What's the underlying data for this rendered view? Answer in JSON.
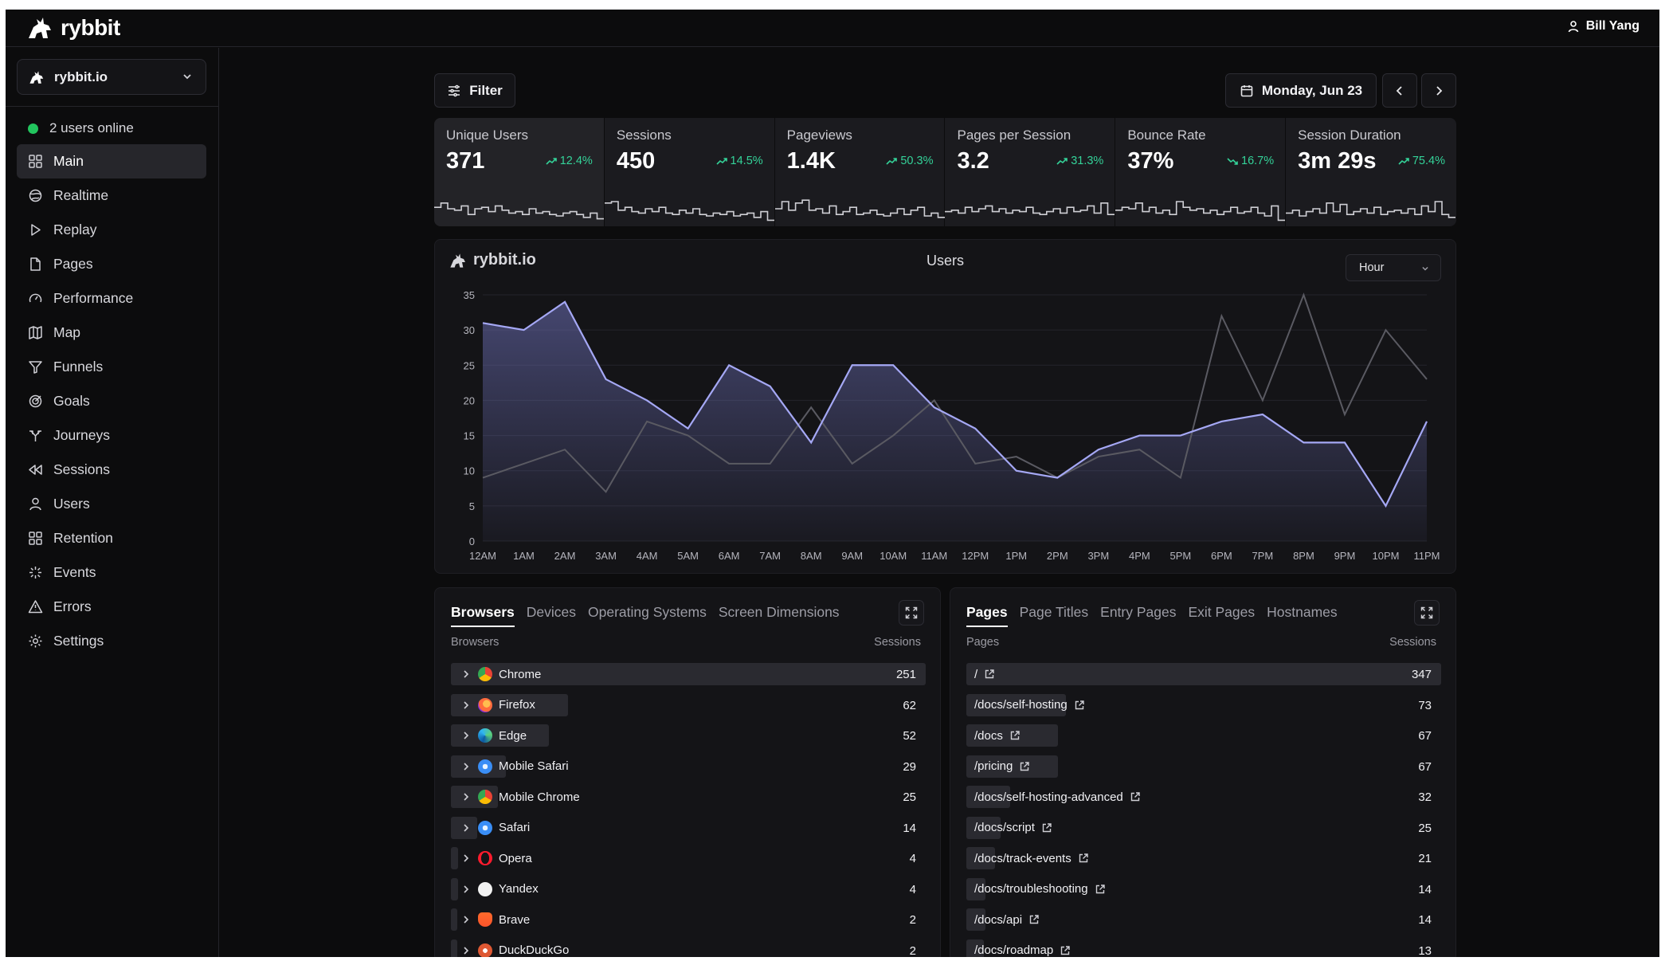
{
  "app": {
    "name": "rybbit",
    "user": "Bill Yang"
  },
  "sidebar": {
    "site": "rybbit.io",
    "online": "2 users online",
    "items": [
      {
        "label": "Main",
        "icon": "grid-icon",
        "active": true
      },
      {
        "label": "Realtime",
        "icon": "globe-icon"
      },
      {
        "label": "Replay",
        "icon": "play-icon"
      },
      {
        "label": "Pages",
        "icon": "file-icon"
      },
      {
        "label": "Performance",
        "icon": "gauge-icon"
      },
      {
        "label": "Map",
        "icon": "map-icon"
      },
      {
        "label": "Funnels",
        "icon": "funnel-icon"
      },
      {
        "label": "Goals",
        "icon": "target-icon"
      },
      {
        "label": "Journeys",
        "icon": "split-icon"
      },
      {
        "label": "Sessions",
        "icon": "rewind-icon"
      },
      {
        "label": "Users",
        "icon": "user-icon"
      },
      {
        "label": "Retention",
        "icon": "grid-icon"
      },
      {
        "label": "Events",
        "icon": "sparkle-icon"
      },
      {
        "label": "Errors",
        "icon": "warning-icon"
      },
      {
        "label": "Settings",
        "icon": "gear-icon"
      }
    ]
  },
  "toolbar": {
    "filter": "Filter",
    "date": "Monday, Jun 23"
  },
  "stats": [
    {
      "label": "Unique Users",
      "value": "371",
      "change": "12.4%",
      "dir": "up",
      "spark": [
        0.55,
        0.7,
        0.5,
        0.45,
        0.6,
        0.3,
        0.5,
        0.55,
        0.4,
        0.6,
        0.45,
        0.35,
        0.4,
        0.3,
        0.5,
        0.35,
        0.4,
        0.3,
        0.25,
        0.35,
        0.4,
        0.3,
        0.2,
        0.35,
        0.15
      ]
    },
    {
      "label": "Sessions",
      "value": "450",
      "change": "14.5%",
      "dir": "up",
      "spark": [
        0.7,
        0.75,
        0.45,
        0.55,
        0.4,
        0.35,
        0.5,
        0.4,
        0.55,
        0.35,
        0.3,
        0.45,
        0.35,
        0.5,
        0.3,
        0.25,
        0.35,
        0.3,
        0.4,
        0.25,
        0.3,
        0.35,
        0.2,
        0.4,
        0.1
      ]
    },
    {
      "label": "Pageviews",
      "value": "1.4K",
      "change": "50.3%",
      "dir": "up",
      "spark": [
        0.5,
        0.75,
        0.45,
        0.7,
        0.8,
        0.45,
        0.5,
        0.35,
        0.6,
        0.3,
        0.4,
        0.55,
        0.3,
        0.35,
        0.45,
        0.3,
        0.25,
        0.35,
        0.5,
        0.3,
        0.45,
        0.55,
        0.25,
        0.35,
        0.2
      ]
    },
    {
      "label": "Pages per Session",
      "value": "3.2",
      "change": "31.3%",
      "dir": "up",
      "spark": [
        0.4,
        0.45,
        0.35,
        0.55,
        0.4,
        0.5,
        0.6,
        0.4,
        0.5,
        0.35,
        0.45,
        0.4,
        0.55,
        0.35,
        0.3,
        0.4,
        0.5,
        0.35,
        0.55,
        0.4,
        0.45,
        0.6,
        0.35,
        0.7,
        0.3
      ]
    },
    {
      "label": "Bounce Rate",
      "value": "37%",
      "change": "16.7%",
      "dir": "down",
      "spark": [
        0.45,
        0.55,
        0.5,
        0.7,
        0.4,
        0.55,
        0.35,
        0.45,
        0.3,
        0.75,
        0.55,
        0.45,
        0.5,
        0.35,
        0.45,
        0.3,
        0.4,
        0.55,
        0.35,
        0.4,
        0.55,
        0.35,
        0.25,
        0.6,
        0.1
      ]
    },
    {
      "label": "Session Duration",
      "value": "3m 29s",
      "change": "75.4%",
      "dir": "up",
      "spark": [
        0.35,
        0.45,
        0.25,
        0.4,
        0.5,
        0.35,
        0.7,
        0.4,
        0.65,
        0.3,
        0.4,
        0.5,
        0.35,
        0.55,
        0.3,
        0.4,
        0.45,
        0.35,
        0.5,
        0.3,
        0.6,
        0.4,
        0.75,
        0.3,
        0.2
      ]
    }
  ],
  "chart_data": {
    "type": "area",
    "title": "Users",
    "site": "rybbit.io",
    "interval": "Hour",
    "x": [
      "12AM",
      "1AM",
      "2AM",
      "3AM",
      "4AM",
      "5AM",
      "6AM",
      "7AM",
      "8AM",
      "9AM",
      "10AM",
      "11AM",
      "12PM",
      "1PM",
      "2PM",
      "3PM",
      "4PM",
      "5PM",
      "6PM",
      "7PM",
      "8PM",
      "9PM",
      "10PM",
      "11PM"
    ],
    "series": [
      {
        "name": "",
        "values": [
          31,
          30,
          34,
          23,
          20,
          16,
          25,
          22,
          14,
          25,
          25,
          19,
          16,
          10,
          9,
          13,
          15,
          15,
          17,
          18,
          14,
          14,
          5,
          17
        ]
      },
      {
        "name": "",
        "values": [
          9,
          11,
          13,
          7,
          17,
          15,
          11,
          11,
          19,
          11,
          15,
          20,
          11,
          12,
          9,
          12,
          13,
          9,
          32,
          20,
          35,
          18,
          30,
          23
        ]
      }
    ],
    "ylim": [
      0,
      35
    ],
    "yticks": [
      0,
      5,
      10,
      15,
      20,
      25,
      30,
      35
    ],
    "grid": true
  },
  "browsers": {
    "tabs": [
      "Browsers",
      "Devices",
      "Operating Systems",
      "Screen Dimensions"
    ],
    "col_name": "Browsers",
    "col_value": "Sessions",
    "rows": [
      {
        "name": "Chrome",
        "value": 251,
        "icon": "chrome-icon"
      },
      {
        "name": "Firefox",
        "value": 62,
        "icon": "firefox-icon"
      },
      {
        "name": "Edge",
        "value": 52,
        "icon": "edge-icon"
      },
      {
        "name": "Mobile Safari",
        "value": 29,
        "icon": "safari-icon"
      },
      {
        "name": "Mobile Chrome",
        "value": 25,
        "icon": "chrome-icon"
      },
      {
        "name": "Safari",
        "value": 14,
        "icon": "safari-icon"
      },
      {
        "name": "Opera",
        "value": 4,
        "icon": "opera-icon"
      },
      {
        "name": "Yandex",
        "value": 4,
        "icon": "yandex-icon"
      },
      {
        "name": "Brave",
        "value": 2,
        "icon": "brave-icon"
      },
      {
        "name": "DuckDuckGo",
        "value": 2,
        "icon": "duckduckgo-icon"
      }
    ]
  },
  "pages": {
    "tabs": [
      "Pages",
      "Page Titles",
      "Entry Pages",
      "Exit Pages",
      "Hostnames"
    ],
    "col_name": "Pages",
    "col_value": "Sessions",
    "rows": [
      {
        "name": "/",
        "value": 347
      },
      {
        "name": "/docs/self-hosting",
        "value": 73
      },
      {
        "name": "/docs",
        "value": 67
      },
      {
        "name": "/pricing",
        "value": 67
      },
      {
        "name": "/docs/self-hosting-advanced",
        "value": 32
      },
      {
        "name": "/docs/script",
        "value": 25
      },
      {
        "name": "/docs/track-events",
        "value": 21
      },
      {
        "name": "/docs/troubleshooting",
        "value": 14
      },
      {
        "name": "/docs/api",
        "value": 14
      },
      {
        "name": "/docs/roadmap",
        "value": 13
      }
    ]
  },
  "colors": {
    "accent_line": "#a5a8f5",
    "secondary_line": "#5a5a62",
    "positive": "#34d399",
    "online": "#22c55e"
  }
}
